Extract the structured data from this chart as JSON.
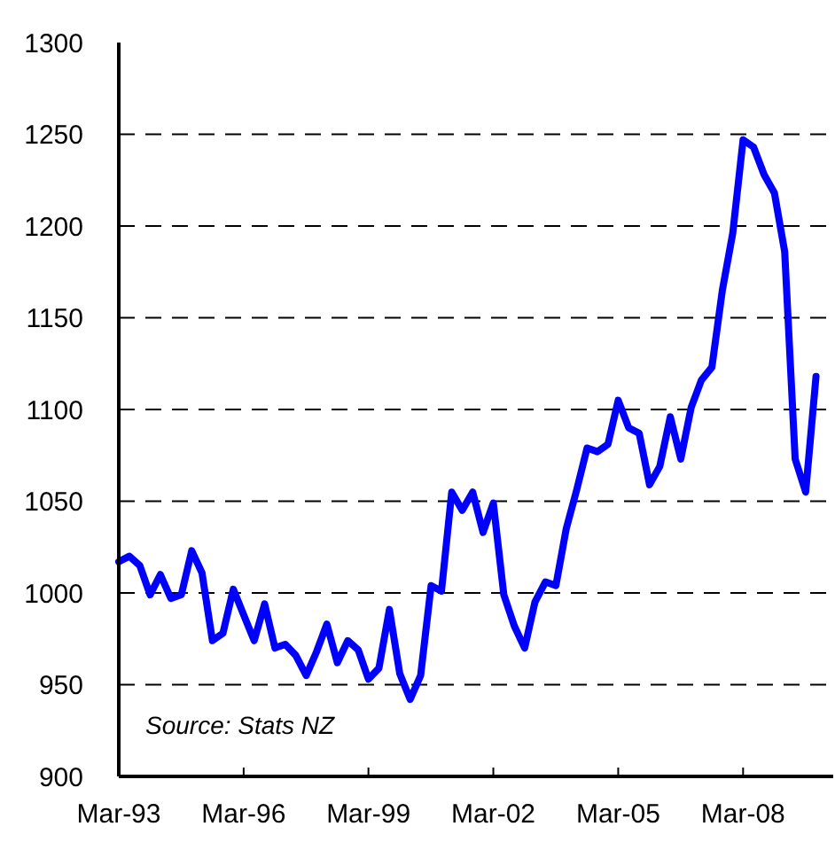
{
  "chart_data": {
    "type": "line",
    "x": [
      "1993-03",
      "1993-06",
      "1993-09",
      "1993-12",
      "1994-03",
      "1994-06",
      "1994-09",
      "1994-12",
      "1995-03",
      "1995-06",
      "1995-09",
      "1995-12",
      "1996-03",
      "1996-06",
      "1996-09",
      "1996-12",
      "1997-03",
      "1997-06",
      "1997-09",
      "1997-12",
      "1998-03",
      "1998-06",
      "1998-09",
      "1998-12",
      "1999-03",
      "1999-06",
      "1999-09",
      "1999-12",
      "2000-03",
      "2000-06",
      "2000-09",
      "2000-12",
      "2001-03",
      "2001-06",
      "2001-09",
      "2001-12",
      "2002-03",
      "2002-06",
      "2002-09",
      "2002-12",
      "2003-03",
      "2003-06",
      "2003-09",
      "2003-12",
      "2004-03",
      "2004-06",
      "2004-09",
      "2004-12",
      "2005-03",
      "2005-06",
      "2005-09",
      "2005-12",
      "2006-03",
      "2006-06",
      "2006-09",
      "2006-12",
      "2007-03",
      "2007-06",
      "2007-09",
      "2007-12",
      "2008-03",
      "2008-06",
      "2008-09",
      "2008-12",
      "2009-03",
      "2009-06",
      "2009-09",
      "2009-12"
    ],
    "series": [
      {
        "color": "#0000ff",
        "values": [
          1017,
          1020,
          1015,
          999,
          1010,
          997,
          999,
          1023,
          1011,
          974,
          978,
          1002,
          988,
          974,
          994,
          970,
          972,
          966,
          955,
          968,
          983,
          962,
          974,
          969,
          953,
          959,
          991,
          956,
          942,
          955,
          1004,
          1001,
          1055,
          1045,
          1055,
          1033,
          1049,
          999,
          982,
          970,
          995,
          1006,
          1004,
          1035,
          1056,
          1079,
          1077,
          1081,
          1105,
          1090,
          1087,
          1059,
          1069,
          1096,
          1073,
          1101,
          1116,
          1123,
          1165,
          1196,
          1247,
          1243,
          1228,
          1218,
          1186,
          1073,
          1055,
          1118
        ]
      }
    ],
    "xlim": [
      "1993-03",
      "2010-05"
    ],
    "xticks": [
      {
        "value": "1993-03",
        "label": "Mar-93"
      },
      {
        "value": "1996-03",
        "label": "Mar-96"
      },
      {
        "value": "1999-03",
        "label": "Mar-99"
      },
      {
        "value": "2002-03",
        "label": "Mar-02"
      },
      {
        "value": "2005-03",
        "label": "Mar-05"
      },
      {
        "value": "2008-03",
        "label": "Mar-08"
      }
    ],
    "ylim": [
      900,
      1300
    ],
    "yticks": [
      900,
      950,
      1000,
      1050,
      1100,
      1150,
      1200,
      1250,
      1300
    ],
    "grid": "y",
    "line_style": "solid",
    "marker": "none",
    "annotations": [
      "Source: Stats NZ"
    ]
  }
}
